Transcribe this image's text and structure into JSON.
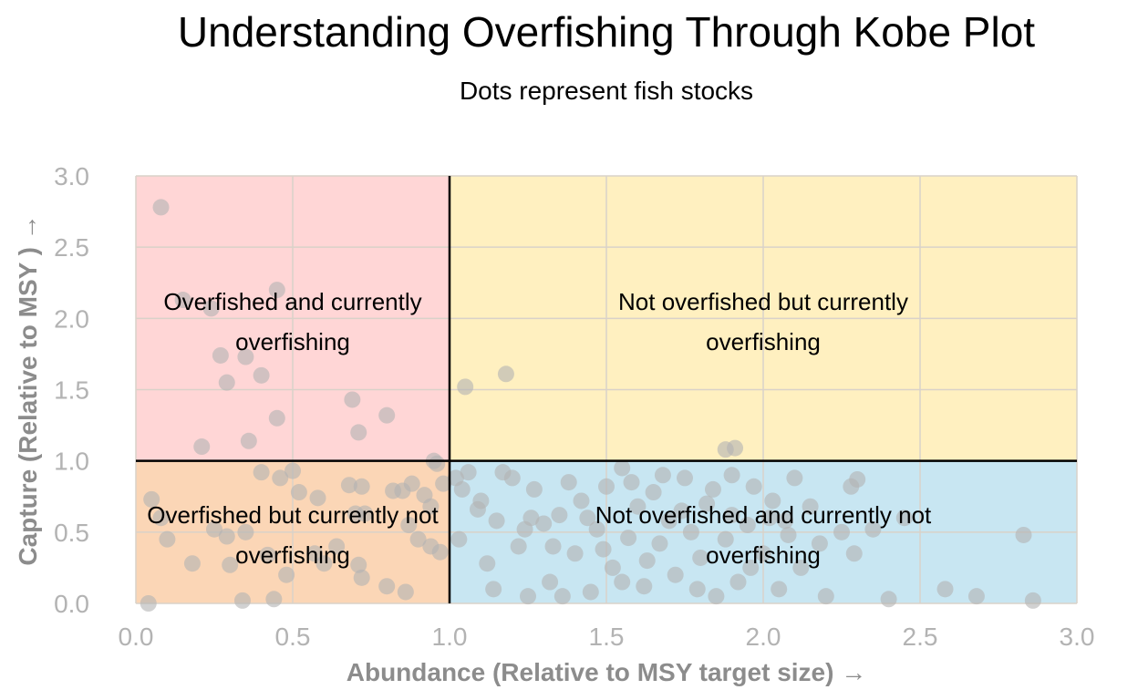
{
  "title": "Understanding Overfishing Through Kobe Plot",
  "subtitle": "Dots represent fish stocks",
  "chart_data": {
    "type": "scatter",
    "title": "Understanding Overfishing Through Kobe Plot",
    "subtitle": "Dots represent fish stocks",
    "xlabel": "Abundance (Relative to MSY target size) →",
    "ylabel": "Capture (Relative to MSY ) →",
    "xlim": [
      0,
      3
    ],
    "ylim": [
      0,
      3
    ],
    "xticks": [
      "0.0",
      "0.5",
      "1.0",
      "1.5",
      "2.0",
      "2.5",
      "3.0"
    ],
    "yticks": [
      "0.0",
      "0.5",
      "1.0",
      "1.5",
      "2.0",
      "2.5",
      "3.0"
    ],
    "grid": true,
    "reference_lines": {
      "x": 1.0,
      "y": 1.0
    },
    "regions": [
      {
        "label": "Overfished and currently overfishing",
        "lines": [
          "Overfished and currently",
          "overfishing"
        ],
        "x_range": [
          0,
          1
        ],
        "y_range": [
          1,
          3
        ],
        "color": "#ffd6d6"
      },
      {
        "label": "Not overfished but currently overfishing",
        "lines": [
          "Not overfished but currently",
          "overfishing"
        ],
        "x_range": [
          1,
          3
        ],
        "y_range": [
          1,
          3
        ],
        "color": "#fff0c0"
      },
      {
        "label": "Overfished but currently not overfishing",
        "lines": [
          "Overfished but currently not",
          "overfishing"
        ],
        "x_range": [
          0,
          1
        ],
        "y_range": [
          0,
          1
        ],
        "color": "#fbd6b6"
      },
      {
        "label": "Not overfished and currently not overfishing",
        "lines": [
          "Not overfished and currently not",
          "overfishing"
        ],
        "x_range": [
          1,
          3
        ],
        "y_range": [
          0,
          1
        ],
        "color": "#c8e6f2"
      }
    ],
    "series": [
      {
        "points": [
          [
            0.08,
            2.78
          ],
          [
            0.45,
            2.2
          ],
          [
            0.15,
            2.13
          ],
          [
            0.24,
            2.07
          ],
          [
            0.27,
            1.74
          ],
          [
            0.35,
            1.73
          ],
          [
            0.4,
            1.6
          ],
          [
            0.29,
            1.55
          ],
          [
            0.69,
            1.43
          ],
          [
            0.45,
            1.3
          ],
          [
            0.8,
            1.32
          ],
          [
            0.71,
            1.2
          ],
          [
            0.36,
            1.14
          ],
          [
            0.21,
            1.1
          ],
          [
            0.95,
            1.0
          ],
          [
            1.05,
            1.52
          ],
          [
            1.18,
            1.61
          ],
          [
            1.88,
            1.08
          ],
          [
            1.91,
            1.09
          ],
          [
            0.4,
            0.92
          ],
          [
            0.46,
            0.88
          ],
          [
            0.5,
            0.93
          ],
          [
            0.52,
            0.78
          ],
          [
            0.58,
            0.74
          ],
          [
            0.68,
            0.83
          ],
          [
            0.72,
            0.82
          ],
          [
            0.73,
            0.63
          ],
          [
            0.82,
            0.79
          ],
          [
            0.85,
            0.79
          ],
          [
            0.88,
            0.84
          ],
          [
            0.92,
            0.76
          ],
          [
            0.94,
            0.68
          ],
          [
            0.96,
            0.98
          ],
          [
            0.98,
            0.84
          ],
          [
            0.05,
            0.73
          ],
          [
            0.08,
            0.6
          ],
          [
            0.18,
            0.28
          ],
          [
            0.25,
            0.52
          ],
          [
            0.29,
            0.47
          ],
          [
            0.3,
            0.27
          ],
          [
            0.35,
            0.5
          ],
          [
            0.42,
            0.34
          ],
          [
            0.48,
            0.2
          ],
          [
            0.57,
            0.35
          ],
          [
            0.6,
            0.28
          ],
          [
            0.64,
            0.4
          ],
          [
            0.7,
            0.63
          ],
          [
            0.71,
            0.27
          ],
          [
            0.72,
            0.18
          ],
          [
            0.8,
            0.12
          ],
          [
            0.86,
            0.08
          ],
          [
            0.87,
            0.55
          ],
          [
            0.9,
            0.45
          ],
          [
            0.94,
            0.4
          ],
          [
            0.97,
            0.36
          ],
          [
            0.04,
            0.0
          ],
          [
            0.34,
            0.02
          ],
          [
            0.44,
            0.03
          ],
          [
            0.1,
            0.45
          ],
          [
            1.02,
            0.88
          ],
          [
            1.04,
            0.8
          ],
          [
            1.06,
            0.92
          ],
          [
            1.09,
            0.66
          ],
          [
            1.12,
            0.28
          ],
          [
            1.15,
            0.58
          ],
          [
            1.17,
            0.92
          ],
          [
            1.2,
            0.88
          ],
          [
            1.22,
            0.4
          ],
          [
            1.24,
            0.52
          ],
          [
            1.25,
            0.05
          ],
          [
            1.27,
            0.8
          ],
          [
            1.3,
            0.56
          ],
          [
            1.32,
            0.15
          ],
          [
            1.35,
            0.62
          ],
          [
            1.38,
            0.85
          ],
          [
            1.4,
            0.35
          ],
          [
            1.42,
            0.72
          ],
          [
            1.45,
            0.08
          ],
          [
            1.47,
            0.52
          ],
          [
            1.5,
            0.82
          ],
          [
            1.52,
            0.25
          ],
          [
            1.55,
            0.95
          ],
          [
            1.57,
            0.46
          ],
          [
            1.6,
            0.68
          ],
          [
            1.62,
            0.12
          ],
          [
            1.65,
            0.78
          ],
          [
            1.67,
            0.42
          ],
          [
            1.7,
            0.58
          ],
          [
            1.72,
            0.2
          ],
          [
            1.75,
            0.88
          ],
          [
            1.77,
            0.5
          ],
          [
            1.8,
            0.32
          ],
          [
            1.82,
            0.7
          ],
          [
            1.85,
            0.05
          ],
          [
            1.88,
            0.45
          ],
          [
            1.9,
            0.62
          ],
          [
            1.92,
            0.15
          ],
          [
            1.95,
            0.55
          ],
          [
            1.97,
            0.82
          ],
          [
            2.0,
            0.35
          ],
          [
            2.02,
            0.6
          ],
          [
            2.05,
            0.1
          ],
          [
            2.08,
            0.48
          ],
          [
            2.1,
            0.88
          ],
          [
            2.12,
            0.25
          ],
          [
            2.15,
            0.68
          ],
          [
            2.2,
            0.05
          ],
          [
            2.25,
            0.5
          ],
          [
            2.28,
            0.82
          ],
          [
            2.3,
            0.87
          ],
          [
            2.29,
            0.35
          ],
          [
            2.35,
            0.52
          ],
          [
            2.4,
            0.03
          ],
          [
            2.45,
            0.6
          ],
          [
            2.58,
            0.1
          ],
          [
            2.68,
            0.05
          ],
          [
            2.83,
            0.48
          ],
          [
            2.86,
            0.02
          ],
          [
            1.03,
            0.45
          ],
          [
            1.1,
            0.72
          ],
          [
            1.14,
            0.1
          ],
          [
            1.26,
            0.6
          ],
          [
            1.33,
            0.4
          ],
          [
            1.44,
            0.6
          ],
          [
            1.49,
            0.38
          ],
          [
            1.58,
            0.85
          ],
          [
            1.63,
            0.3
          ],
          [
            1.74,
            0.65
          ],
          [
            1.79,
            0.1
          ],
          [
            1.84,
            0.8
          ],
          [
            1.96,
            0.25
          ],
          [
            2.03,
            0.72
          ],
          [
            2.18,
            0.42
          ],
          [
            1.36,
            0.05
          ],
          [
            1.55,
            0.15
          ],
          [
            1.68,
            0.9
          ],
          [
            1.9,
            0.9
          ],
          [
            2.07,
            0.58
          ]
        ]
      }
    ],
    "point_color": "#b3b3b3",
    "point_opacity": 0.6
  }
}
